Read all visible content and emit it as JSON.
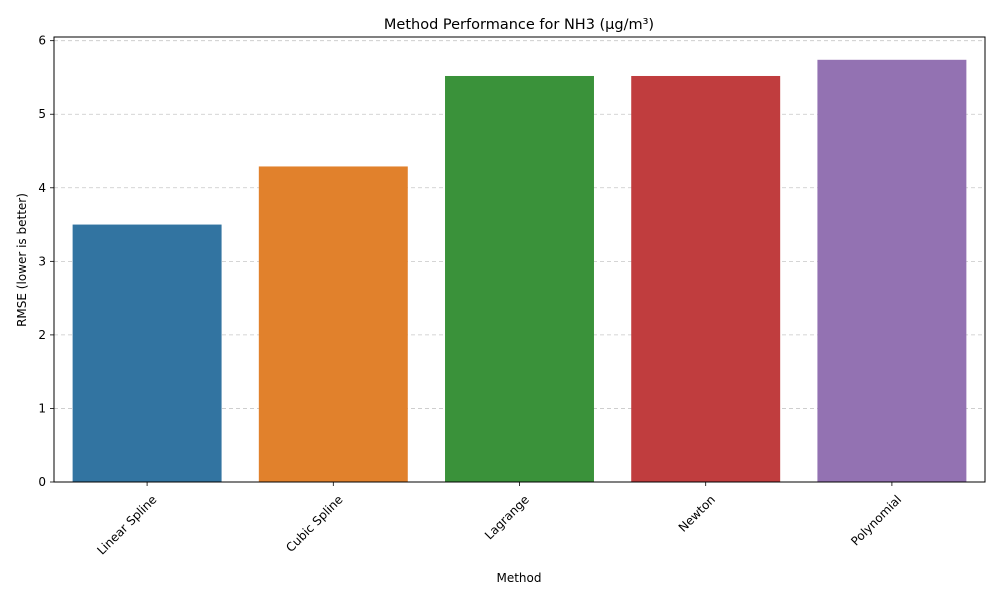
{
  "chart_data": {
    "type": "bar",
    "title": "Method Performance for NH3 (μg/m³)",
    "xlabel": "Method",
    "ylabel": "RMSE (lower is better)",
    "categories": [
      "Linear Spline",
      "Cubic Spline",
      "Lagrange",
      "Newton",
      "Polynomial"
    ],
    "values": [
      3.5,
      4.29,
      5.52,
      5.52,
      5.74
    ],
    "colors": [
      "#3274a1",
      "#e1812c",
      "#3a923a",
      "#c03d3e",
      "#9372b2"
    ],
    "ylim": [
      0,
      6.05
    ],
    "yticks": [
      "0",
      "1",
      "2",
      "3",
      "4",
      "5",
      "6"
    ],
    "grid": "y-dashed",
    "xtick_rotation_deg": 45
  }
}
